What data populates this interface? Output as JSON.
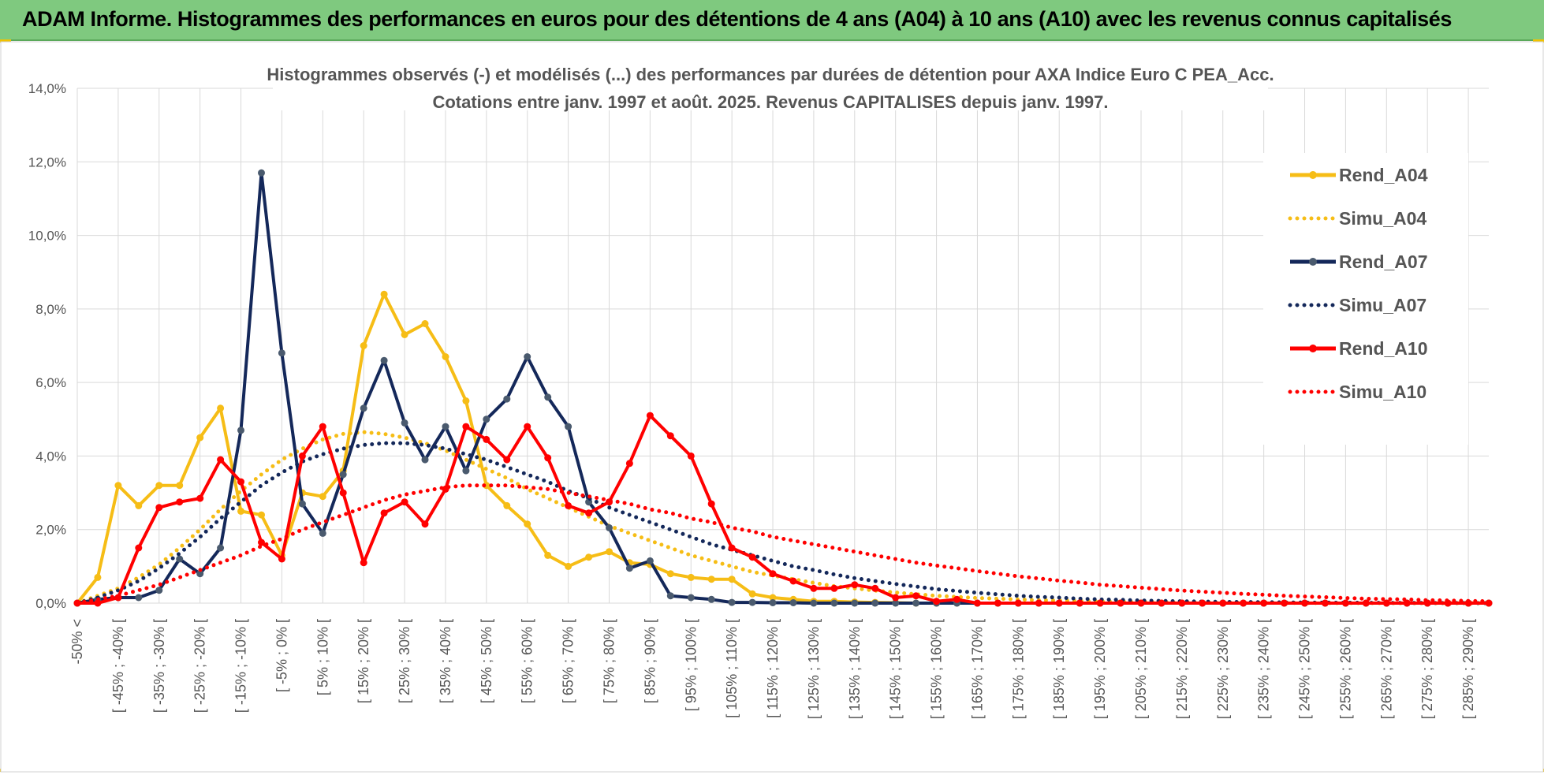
{
  "banner": {
    "title": "ADAM Informe. Histogrammes des performances en euros pour des détentions de 4 ans (A04) à 10 ans (A10) avec les revenus connus capitalisés"
  },
  "chart_data": {
    "type": "line",
    "title_line1": "Histogrammes observés (-) et modélisés (...) des performances par durées de détention pour AXA Indice Euro C PEA_Acc.",
    "title_line2": "Cotations entre janv. 1997 et août. 2025. Revenus CAPITALISES depuis janv. 1997.",
    "ylim": [
      0,
      14
    ],
    "y_ticks": [
      "0,0%",
      "2,0%",
      "4,0%",
      "6,0%",
      "8,0%",
      "10,0%",
      "12,0%",
      "14,0%"
    ],
    "grid": true,
    "legend_position": "right",
    "x_tick_labels": [
      "-50% <",
      "[ -45% ; -40% [",
      "[ -35% ; -30% [",
      "[ -25% ; -20% [",
      "[ -15% ; -10% [",
      "[ -5% ; 0% [",
      "[ 5% ; 10% [",
      "[ 15% ; 20% [",
      "[ 25% ; 30% [",
      "[ 35% ; 40% [",
      "[ 45% ; 50% [",
      "[ 55% ; 60% [",
      "[ 65% ; 70% [",
      "[ 75% ; 80% [",
      "[ 85% ; 90% [",
      "[ 95% ; 100% [",
      "[ 105% ; 110% [",
      "[ 115% ; 120% [",
      "[ 125% ; 130% [",
      "[ 135% ; 140% [",
      "[ 145% ; 150% [",
      "[ 155% ; 160% [",
      "[ 165% ; 170% [",
      "[ 175% ; 180% [",
      "[ 185% ; 190% [",
      "[ 195% ; 200% [",
      "[ 205% ; 210% [",
      "[ 215% ; 220% [",
      "[ 225% ; 230% [",
      "[ 235% ; 240% [",
      "[ 245% ; 250% [",
      "[ 255% ; 260% [",
      "[ 265% ; 270% [",
      "[ 275% ; 280% [",
      "[ 285% ; 290% ["
    ],
    "series": [
      {
        "name": "Rend_A04",
        "style": "solid",
        "color": "#f6bd16",
        "values": [
          0,
          0.7,
          3.2,
          2.65,
          3.2,
          3.2,
          4.5,
          5.3,
          2.5,
          2.4,
          1.3,
          3.0,
          2.9,
          3.6,
          7.0,
          8.4,
          7.3,
          7.6,
          6.7,
          5.5,
          3.2,
          2.65,
          2.15,
          1.3,
          1.0,
          1.25,
          1.4,
          1.1,
          1.05,
          0.8,
          0.7,
          0.65,
          0.65,
          0.25,
          0.15,
          0.1,
          0.05,
          0.05,
          0.03,
          0.02,
          0.01,
          0,
          0,
          0,
          0,
          0,
          0,
          0,
          0,
          0,
          0,
          0,
          0,
          0,
          0,
          0,
          0,
          0,
          0,
          0,
          0,
          0,
          0,
          0,
          0,
          0,
          0,
          0,
          0,
          0
        ]
      },
      {
        "name": "Simu_A04",
        "style": "dotted",
        "color": "#f6bd16",
        "values": [
          0,
          0.2,
          0.4,
          0.7,
          1.05,
          1.5,
          2.0,
          2.55,
          3.05,
          3.5,
          3.9,
          4.2,
          4.45,
          4.6,
          4.65,
          4.6,
          4.5,
          4.35,
          4.15,
          3.9,
          3.65,
          3.4,
          3.1,
          2.85,
          2.6,
          2.35,
          2.1,
          1.9,
          1.7,
          1.5,
          1.3,
          1.15,
          1.0,
          0.85,
          0.75,
          0.65,
          0.55,
          0.46,
          0.4,
          0.34,
          0.29,
          0.24,
          0.2,
          0.17,
          0.14,
          0.12,
          0.1,
          0.08,
          0.07,
          0.06,
          0.05,
          0.04,
          0.03,
          0.025,
          0.02,
          0.015,
          0.01,
          0.01,
          0.01,
          0.005,
          0.005,
          0,
          0,
          0,
          0,
          0,
          0,
          0,
          0,
          0
        ]
      },
      {
        "name": "Rend_A07",
        "style": "solid",
        "color": "#14285a",
        "values": [
          0,
          0.1,
          0.15,
          0.15,
          0.35,
          1.2,
          0.8,
          1.5,
          4.7,
          11.7,
          6.8,
          2.7,
          1.9,
          3.5,
          5.3,
          6.6,
          4.9,
          3.9,
          4.8,
          3.6,
          5.0,
          5.55,
          6.7,
          5.6,
          4.8,
          2.75,
          2.05,
          0.95,
          1.15,
          0.2,
          0.15,
          0.1,
          0.02,
          0.02,
          0.01,
          0.01,
          0,
          0,
          0,
          0,
          0,
          0,
          0,
          0,
          0,
          0,
          0,
          0,
          0,
          0,
          0,
          0,
          0,
          0,
          0,
          0,
          0,
          0,
          0,
          0,
          0,
          0,
          0,
          0,
          0,
          0,
          0,
          0,
          0,
          0
        ]
      },
      {
        "name": "Simu_A07",
        "style": "dotted",
        "color": "#14285a",
        "values": [
          0,
          0.15,
          0.35,
          0.6,
          0.95,
          1.35,
          1.8,
          2.3,
          2.75,
          3.2,
          3.55,
          3.85,
          4.05,
          4.2,
          4.3,
          4.35,
          4.35,
          4.3,
          4.2,
          4.05,
          3.9,
          3.7,
          3.5,
          3.3,
          3.05,
          2.85,
          2.6,
          2.4,
          2.2,
          2.0,
          1.8,
          1.6,
          1.45,
          1.3,
          1.15,
          1.0,
          0.9,
          0.78,
          0.68,
          0.6,
          0.52,
          0.45,
          0.38,
          0.33,
          0.28,
          0.24,
          0.2,
          0.17,
          0.15,
          0.12,
          0.1,
          0.09,
          0.07,
          0.06,
          0.05,
          0.04,
          0.035,
          0.03,
          0.025,
          0.02,
          0.015,
          0.012,
          0.01,
          0.008,
          0.006,
          0.005,
          0.004,
          0.003,
          0.002,
          0
        ]
      },
      {
        "name": "Rend_A10",
        "style": "solid",
        "color": "#ff0000",
        "values": [
          0,
          0,
          0.15,
          1.5,
          2.6,
          2.75,
          2.85,
          3.9,
          3.3,
          1.65,
          1.2,
          4.0,
          4.8,
          3.0,
          1.1,
          2.45,
          2.75,
          2.15,
          3.1,
          4.8,
          4.45,
          3.9,
          4.8,
          3.95,
          2.65,
          2.45,
          2.75,
          3.8,
          5.1,
          4.55,
          4.0,
          2.7,
          1.5,
          1.25,
          0.8,
          0.6,
          0.4,
          0.4,
          0.5,
          0.4,
          0.15,
          0.2,
          0.05,
          0.1,
          0,
          0,
          0,
          0,
          0,
          0,
          0,
          0,
          0,
          0,
          0,
          0,
          0,
          0,
          0,
          0,
          0,
          0,
          0,
          0,
          0,
          0,
          0,
          0,
          0,
          0
        ]
      },
      {
        "name": "Simu_A10",
        "style": "dotted",
        "color": "#ff0000",
        "values": [
          0,
          0.1,
          0.2,
          0.35,
          0.5,
          0.7,
          0.9,
          1.1,
          1.3,
          1.55,
          1.75,
          2.0,
          2.2,
          2.4,
          2.6,
          2.8,
          2.95,
          3.05,
          3.15,
          3.2,
          3.2,
          3.2,
          3.15,
          3.1,
          3.0,
          2.9,
          2.8,
          2.7,
          2.55,
          2.45,
          2.3,
          2.2,
          2.05,
          1.95,
          1.8,
          1.7,
          1.6,
          1.5,
          1.4,
          1.3,
          1.2,
          1.1,
          1.02,
          0.95,
          0.87,
          0.8,
          0.73,
          0.67,
          0.61,
          0.56,
          0.5,
          0.46,
          0.42,
          0.38,
          0.34,
          0.31,
          0.28,
          0.25,
          0.23,
          0.2,
          0.18,
          0.16,
          0.14,
          0.12,
          0.11,
          0.1,
          0.08,
          0.07,
          0.06,
          0.05
        ]
      }
    ]
  }
}
